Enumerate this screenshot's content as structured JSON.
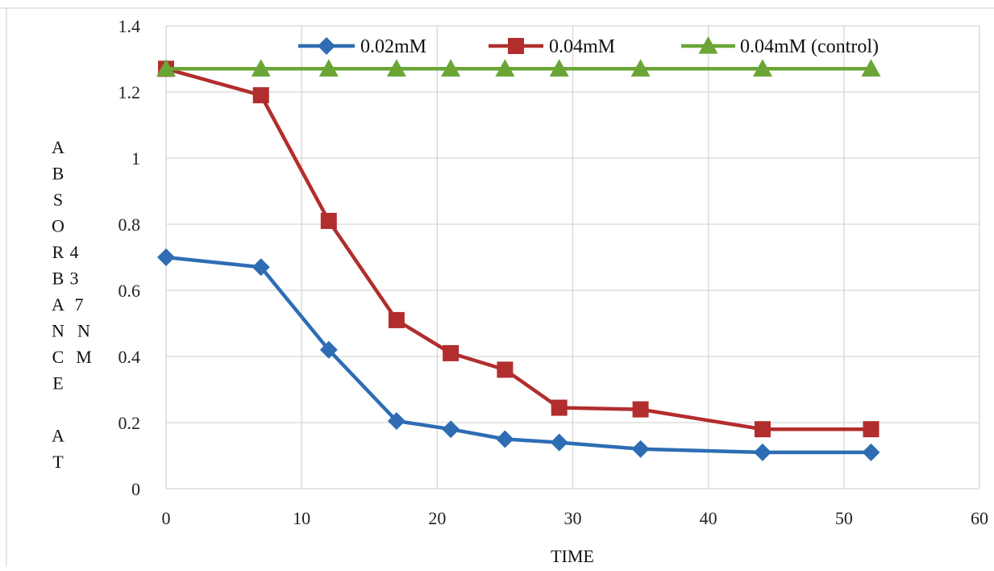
{
  "chart_data": {
    "type": "line",
    "title": "",
    "xlabel": "TIME",
    "ylabel_col1": [
      "A",
      "B",
      "S",
      "O",
      "R",
      "B",
      "A",
      "N",
      "C",
      "E",
      "",
      "A",
      "T"
    ],
    "ylabel_col2": [
      "4",
      "3",
      "7",
      "N",
      "M"
    ],
    "xlim": [
      0,
      60
    ],
    "ylim": [
      0,
      1.4
    ],
    "xticks": [
      0,
      10,
      20,
      30,
      40,
      50,
      60
    ],
    "yticks": [
      0,
      0.2,
      0.4,
      0.6,
      0.8,
      1,
      1.2,
      1.4
    ],
    "xtick_labels": [
      "0",
      "10",
      "20",
      "30",
      "40",
      "50",
      "60"
    ],
    "ytick_labels": [
      "0",
      "0.2",
      "0.4",
      "0.6",
      "0.8",
      "1",
      "1.2",
      "1.4"
    ],
    "grid": true,
    "legend_position": "top",
    "x": [
      0,
      7,
      12,
      17,
      21,
      25,
      29,
      35,
      44,
      52
    ],
    "series": [
      {
        "name": "0.02mM",
        "color": "#2e6db4",
        "marker": "diamond",
        "values": [
          0.7,
          0.67,
          0.42,
          0.205,
          0.18,
          0.15,
          0.14,
          0.12,
          0.11,
          0.11
        ]
      },
      {
        "name": "0.04mM",
        "color": "#b22d2d",
        "marker": "square",
        "values": [
          1.27,
          1.19,
          0.81,
          0.51,
          0.41,
          0.36,
          0.245,
          0.24,
          0.18,
          0.18
        ]
      },
      {
        "name": "0.04mM (control)",
        "color": "#6aa536",
        "marker": "triangle",
        "values": [
          1.27,
          1.27,
          1.27,
          1.27,
          1.27,
          1.27,
          1.27,
          1.27,
          1.27,
          1.27
        ]
      }
    ]
  }
}
